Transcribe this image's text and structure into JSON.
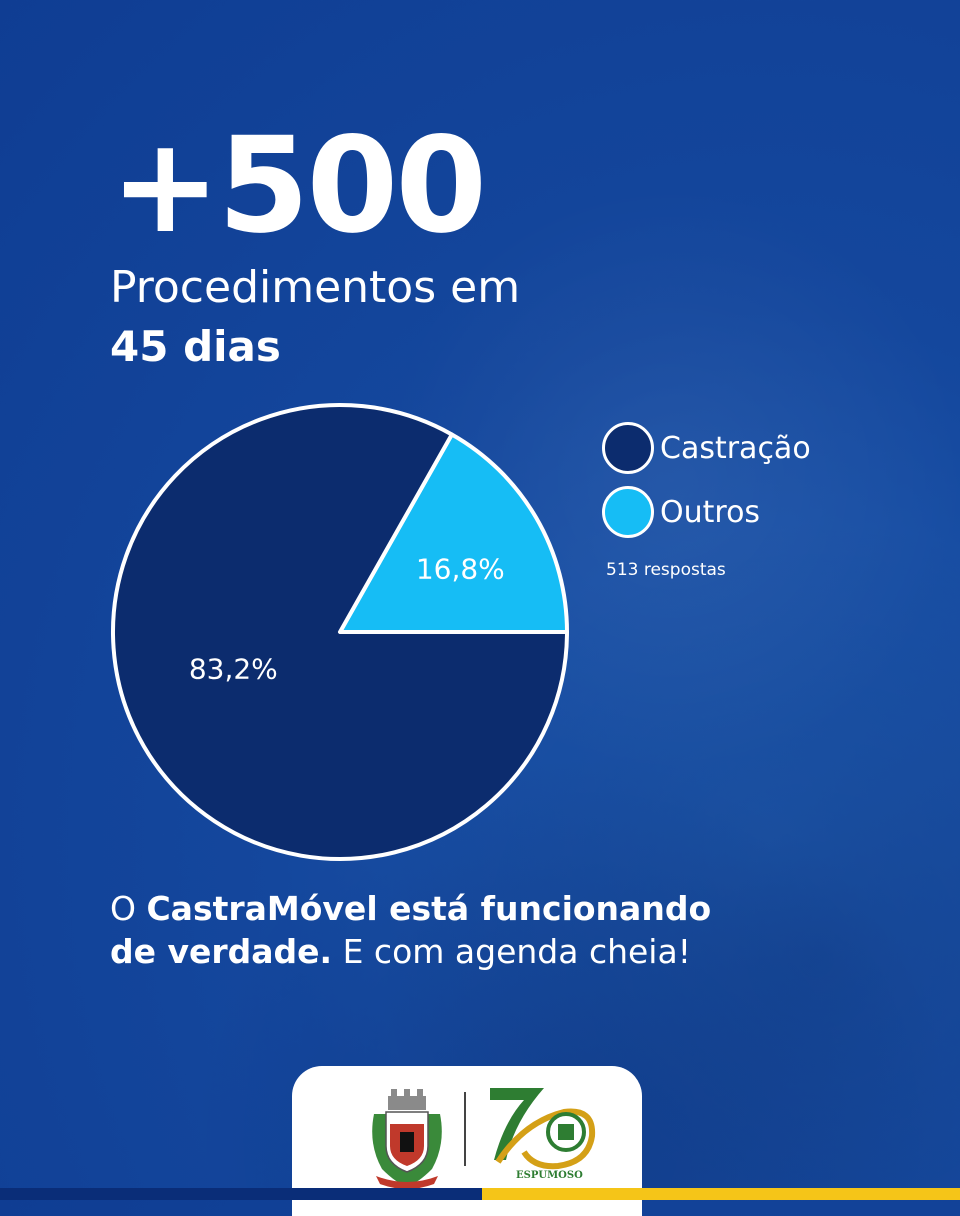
{
  "headline": {
    "number": "+500",
    "line1": "Procedimentos em",
    "line2": "45 dias"
  },
  "chart_data": {
    "type": "pie",
    "slices": [
      {
        "label": "Castração",
        "value": 83.2,
        "value_label": "83,2%",
        "color": "#0c2c6e"
      },
      {
        "label": "Outros",
        "value": 16.8,
        "value_label": "16,8%",
        "color": "#16bdf5"
      }
    ],
    "legend_position": "right",
    "responses_note": "513 respostas"
  },
  "caption": {
    "prefix": "O ",
    "bold1": "CastraMóvel está funcionando de verdade.",
    "rest": " E com agenda cheia!"
  },
  "logos": {
    "left": "municipal-coat-of-arms",
    "right": "espumoso-70-anos-logo",
    "right_text": "ESPUMOSO"
  },
  "colors": {
    "background": "#14479d",
    "bar_left": "#0a2d78",
    "bar_right": "#f5c518"
  }
}
